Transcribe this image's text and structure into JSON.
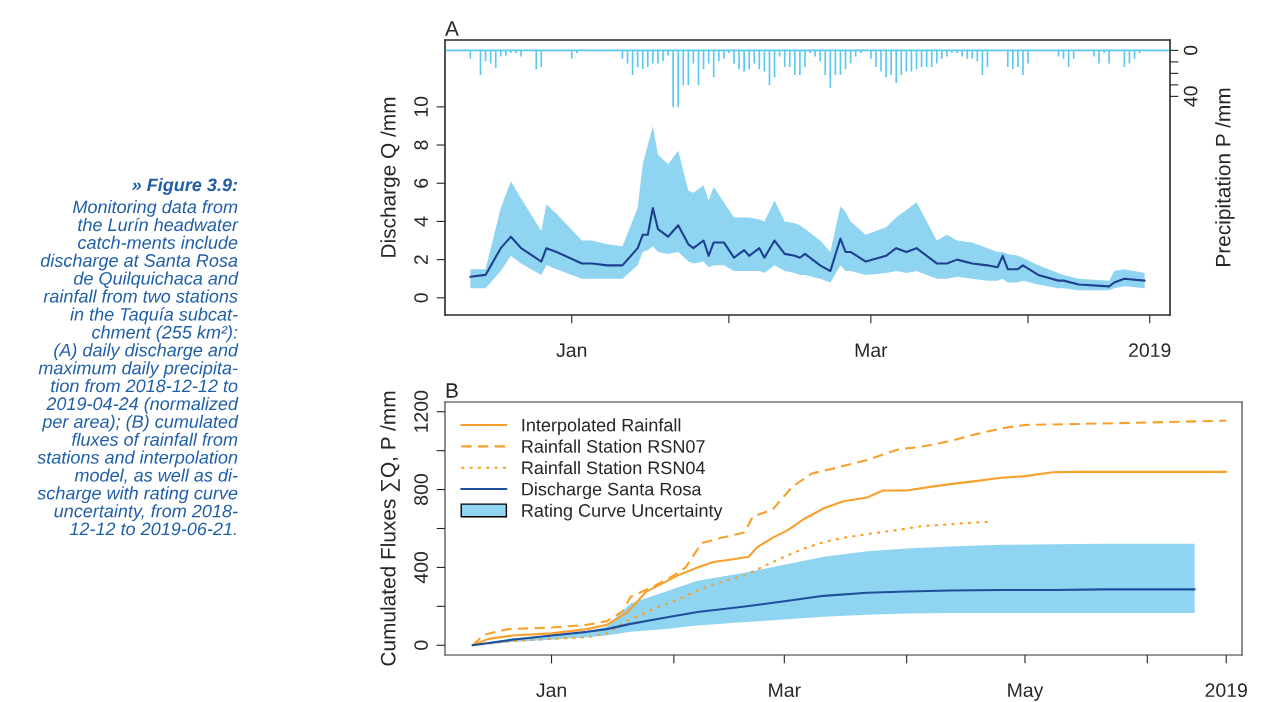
{
  "chart_data": [
    {
      "type": "line",
      "title": "A",
      "ylabel": "Discharge Q /mm",
      "y2label": "Precipitation P /mm",
      "xlim": [
        "2018-12-07",
        "2019-04-29"
      ],
      "xticks": [
        {
          "value": "2019-01-01",
          "label": "Jan"
        },
        {
          "value": "2019-02-01",
          "label": null
        },
        {
          "value": "2019-03-01",
          "label": "Mar"
        },
        {
          "value": "2019-04-01",
          "label": null
        },
        {
          "value": "2019-04-25",
          "label": "2019"
        }
      ],
      "ylim": [
        -0.9,
        13.5
      ],
      "yticks": [
        0,
        2,
        4,
        6,
        8,
        10
      ],
      "y2lim": [
        230,
        -9
      ],
      "y2ticks": [
        0,
        {
          "value": 10,
          "label": null
        },
        {
          "value": 20,
          "label": null
        },
        {
          "value": 30,
          "label": null
        },
        40
      ],
      "ref_lines": [
        {
          "axis": "y2",
          "value": 0,
          "color": "#5bc8f0"
        }
      ],
      "annotations": [
        "» Figure 3.9:",
        "Monitoring data from\nthe Lurín headwater\ncatch-ments include\ndischarge at Santa Rosa\nde Quilquichaca and\nrainfall from two stations\nin the Taquía subcat-\nchment (255 km²):\n(A) daily discharge and\nmaximum daily precipita-\ntion from 2018-12-12 to\n2019-04-24 (normalized\nper area); (B) cumulated\nfluxes of rainfall from\nstations and interpolation\nmodel, as well as di-\nscharge with rating curve\nuncertainty, from 2018-\n12-12 to 2019-06-21."
      ],
      "series": [
        {
          "type": "bar",
          "axis": "y2",
          "color": "#5bc8f0",
          "x": [
            "2018-12-12",
            "2018-12-14",
            "2018-12-15",
            "2018-12-16",
            "2018-12-17",
            "2018-12-18",
            "2018-12-19",
            "2018-12-20",
            "2018-12-21",
            "2018-12-22",
            "2018-12-25",
            "2018-12-26",
            "2019-01-01",
            "2019-01-02",
            "2019-01-03",
            "2019-01-11",
            "2019-01-12",
            "2019-01-13",
            "2019-01-14",
            "2019-01-15",
            "2019-01-16",
            "2019-01-17",
            "2019-01-18",
            "2019-01-19",
            "2019-01-20",
            "2019-01-21",
            "2019-01-22",
            "2019-01-23",
            "2019-01-24",
            "2019-01-25",
            "2019-01-26",
            "2019-01-27",
            "2019-01-28",
            "2019-01-29",
            "2019-01-30",
            "2019-01-31",
            "2019-02-01",
            "2019-02-02",
            "2019-02-03",
            "2019-02-04",
            "2019-02-05",
            "2019-02-06",
            "2019-02-07",
            "2019-02-08",
            "2019-02-09",
            "2019-02-10",
            "2019-02-11",
            "2019-02-12",
            "2019-02-13",
            "2019-02-14",
            "2019-02-15",
            "2019-02-16",
            "2019-02-17",
            "2019-02-18",
            "2019-02-19",
            "2019-02-20",
            "2019-02-21",
            "2019-02-22",
            "2019-02-23",
            "2019-02-24",
            "2019-02-25",
            "2019-02-26",
            "2019-02-27",
            "2019-03-01",
            "2019-03-02",
            "2019-03-03",
            "2019-03-04",
            "2019-03-05",
            "2019-03-06",
            "2019-03-07",
            "2019-03-08",
            "2019-03-09",
            "2019-03-10",
            "2019-03-11",
            "2019-03-12",
            "2019-03-13",
            "2019-03-14",
            "2019-03-15",
            "2019-03-16",
            "2019-03-17",
            "2019-03-18",
            "2019-03-19",
            "2019-03-20",
            "2019-03-21",
            "2019-03-22",
            "2019-03-23",
            "2019-03-24",
            "2019-03-28",
            "2019-03-29",
            "2019-03-30",
            "2019-03-31",
            "2019-04-01",
            "2019-04-07",
            "2019-04-08",
            "2019-04-09",
            "2019-04-10",
            "2019-04-14",
            "2019-04-15",
            "2019-04-16",
            "2019-04-17",
            "2019-04-20",
            "2019-04-21",
            "2019-04-22",
            "2019-04-23"
          ],
          "values": [
            8,
            22,
            10,
            12,
            16,
            6,
            5,
            3,
            3,
            6,
            17,
            15,
            8,
            3,
            1,
            8,
            12,
            22,
            15,
            17,
            15,
            12,
            12,
            10,
            5,
            50,
            50,
            31,
            31,
            12,
            31,
            17,
            12,
            24,
            10,
            8,
            3,
            12,
            17,
            19,
            17,
            12,
            17,
            19,
            31,
            24,
            6,
            15,
            15,
            22,
            22,
            15,
            3,
            6,
            10,
            22,
            33,
            22,
            22,
            17,
            12,
            6,
            3,
            8,
            15,
            19,
            24,
            22,
            29,
            22,
            19,
            19,
            17,
            15,
            15,
            15,
            12,
            8,
            6,
            3,
            3,
            6,
            8,
            8,
            10,
            22,
            15,
            15,
            17,
            15,
            22,
            12,
            6,
            8,
            15,
            8,
            6,
            12,
            3,
            12,
            15,
            12,
            8,
            3
          ]
        },
        {
          "type": "area",
          "color": "#8fd5f2"
        },
        {
          "color": "#1f3f8f",
          "x": [
            "2018-12-12",
            "2018-12-15",
            "2018-12-18",
            "2018-12-20",
            "2018-12-22",
            "2018-12-26",
            "2018-12-27",
            "2018-12-29",
            "2019-01-03",
            "2019-01-05",
            "2019-01-08",
            "2019-01-11",
            "2019-01-14",
            "2019-01-15",
            "2019-01-16",
            "2019-01-17",
            "2019-01-18",
            "2019-01-20",
            "2019-01-22",
            "2019-01-24",
            "2019-01-25",
            "2019-01-27",
            "2019-01-28",
            "2019-01-29",
            "2019-01-31",
            "2019-02-02",
            "2019-02-04",
            "2019-02-05",
            "2019-02-07",
            "2019-02-08",
            "2019-02-10",
            "2019-02-12",
            "2019-02-14",
            "2019-02-15",
            "2019-02-16",
            "2019-02-19",
            "2019-02-21",
            "2019-02-23",
            "2019-02-24",
            "2019-02-25",
            "2019-02-28",
            "2019-03-04",
            "2019-03-06",
            "2019-03-08",
            "2019-03-10",
            "2019-03-14",
            "2019-03-16",
            "2019-03-18",
            "2019-03-21",
            "2019-03-24",
            "2019-03-26",
            "2019-03-27",
            "2019-03-28",
            "2019-03-30",
            "2019-03-31",
            "2019-04-03",
            "2019-04-07",
            "2019-04-08",
            "2019-04-11",
            "2019-04-17",
            "2019-04-18",
            "2019-04-20",
            "2019-04-24"
          ],
          "values": [
            1.1,
            1.2,
            2.6,
            3.2,
            2.6,
            1.9,
            2.6,
            2.4,
            1.8,
            1.8,
            1.7,
            1.7,
            2.6,
            3.3,
            3.3,
            4.7,
            3.6,
            3.2,
            3.8,
            2.8,
            2.6,
            3.0,
            2.2,
            2.9,
            2.9,
            2.1,
            2.5,
            2.2,
            2.6,
            2.1,
            3.0,
            2.3,
            2.2,
            2.1,
            2.3,
            1.7,
            1.4,
            3.1,
            2.4,
            2.4,
            1.9,
            2.2,
            2.6,
            2.4,
            2.6,
            1.8,
            1.8,
            2.0,
            1.8,
            1.7,
            1.6,
            2.2,
            1.5,
            1.5,
            1.7,
            1.2,
            0.9,
            0.9,
            0.7,
            0.6,
            0.8,
            1.0,
            0.9
          ],
          "upper": [
            1.5,
            1.5,
            4.7,
            6.1,
            5.2,
            3.5,
            4.9,
            4.4,
            3.0,
            3.0,
            2.8,
            2.7,
            4.7,
            7.0,
            8.0,
            9.0,
            7.5,
            7.0,
            7.7,
            5.6,
            5.5,
            5.9,
            5.1,
            5.8,
            5.0,
            4.2,
            4.2,
            4.2,
            4.1,
            4.0,
            5.1,
            4.0,
            3.9,
            3.8,
            3.6,
            3.0,
            2.4,
            4.8,
            4.5,
            4.0,
            3.3,
            3.7,
            4.2,
            4.6,
            5.0,
            3.0,
            3.3,
            3.0,
            2.9,
            2.6,
            2.4,
            2.4,
            2.3,
            2.2,
            2.1,
            1.7,
            1.3,
            1.2,
            1.0,
            0.9,
            1.4,
            1.5,
            1.3
          ],
          "lower": [
            0.5,
            0.5,
            1.4,
            2.2,
            1.8,
            1.2,
            1.7,
            1.5,
            1.0,
            1.0,
            1.0,
            1.0,
            1.7,
            2.4,
            2.5,
            2.7,
            2.4,
            2.3,
            2.4,
            1.9,
            1.8,
            1.9,
            1.6,
            1.7,
            1.7,
            1.4,
            1.4,
            1.4,
            1.4,
            1.3,
            1.7,
            1.4,
            1.3,
            1.2,
            1.2,
            1.0,
            0.8,
            1.7,
            1.4,
            1.4,
            1.2,
            1.3,
            1.4,
            1.3,
            1.4,
            1.0,
            1.0,
            1.1,
            1.0,
            0.9,
            0.9,
            1.0,
            0.8,
            0.8,
            0.9,
            0.7,
            0.5,
            0.5,
            0.4,
            0.4,
            0.5,
            0.6,
            0.5
          ]
        }
      ]
    },
    {
      "type": "line",
      "title": "B",
      "ylabel": "Cumulated Fluxes ∑Q, P /mm",
      "legend": "top left",
      "xlim": [
        "2018-12-05",
        "2019-06-25"
      ],
      "xticks": [
        {
          "value": "2019-01-01",
          "label": "Jan"
        },
        {
          "value": "2019-02-01",
          "label": null
        },
        {
          "value": "2019-03-01",
          "label": "Mar"
        },
        {
          "value": "2019-04-01",
          "label": null
        },
        {
          "value": "2019-05-01",
          "label": "May"
        },
        {
          "value": "2019-06-01",
          "label": null
        },
        {
          "value": "2019-06-21",
          "label": "2019"
        }
      ],
      "ylim": [
        -50,
        1250
      ],
      "yticks": [
        0,
        {
          "value": 200,
          "label": null
        },
        400,
        {
          "value": 600,
          "label": null
        },
        800,
        {
          "value": 1000,
          "label": null
        },
        1200
      ],
      "series": [
        {
          "name": "Interpolated Rainfall",
          "line_style": "solid",
          "color": "#f7a12c",
          "x": [
            "2018-12-12",
            "2018-12-16",
            "2018-12-22",
            "2019-01-01",
            "2019-01-10",
            "2019-01-15",
            "2019-01-20",
            "2019-01-22",
            "2019-01-25",
            "2019-01-29",
            "2019-02-02",
            "2019-02-07",
            "2019-02-11",
            "2019-02-16",
            "2019-02-20",
            "2019-02-22",
            "2019-02-26",
            "2019-03-02",
            "2019-03-06",
            "2019-03-11",
            "2019-03-16",
            "2019-03-22",
            "2019-03-26",
            "2019-04-01",
            "2019-04-07",
            "2019-04-12",
            "2019-04-18",
            "2019-04-25",
            "2019-05-01",
            "2019-05-08",
            "2019-05-14",
            "2019-05-21",
            "2019-06-02",
            "2019-06-21"
          ],
          "values": [
            0,
            33,
            50,
            61,
            83,
            105,
            166,
            207,
            276,
            317,
            359,
            400,
            428,
            442,
            455,
            502,
            552,
            593,
            649,
            704,
            740,
            759,
            795,
            795,
            814,
            828,
            842,
            861,
            869,
            889,
            891,
            891,
            891,
            891
          ]
        },
        {
          "name": "Rainfall Station RSN07",
          "line_style": "dashed",
          "color": "#f7a12c",
          "x": [
            "2018-12-12",
            "2018-12-15",
            "2018-12-21",
            "2019-01-01",
            "2019-01-10",
            "2019-01-15",
            "2019-01-19",
            "2019-01-21",
            "2019-01-27",
            "2019-02-01",
            "2019-02-04",
            "2019-02-08",
            "2019-02-13",
            "2019-02-19",
            "2019-02-21",
            "2019-02-26",
            "2019-03-03",
            "2019-03-08",
            "2019-03-14",
            "2019-03-22",
            "2019-03-30",
            "2019-04-05",
            "2019-04-12",
            "2019-04-18",
            "2019-04-26",
            "2019-05-01",
            "2019-05-14",
            "2019-06-02",
            "2019-06-21"
          ],
          "values": [
            0,
            55,
            83,
            91,
            105,
            124,
            174,
            248,
            304,
            359,
            400,
            524,
            552,
            580,
            662,
            696,
            814,
            883,
            911,
            952,
            1007,
            1021,
            1049,
            1082,
            1118,
            1132,
            1137,
            1145,
            1154
          ]
        },
        {
          "name": "Rainfall Station RSN04",
          "line_style": "dotted",
          "color": "#f7a12c",
          "x": [
            "2018-12-12",
            "2018-12-22",
            "2019-01-01",
            "2019-01-10",
            "2019-01-15",
            "2019-01-20",
            "2019-01-27",
            "2019-02-02",
            "2019-02-08",
            "2019-02-13",
            "2019-02-19",
            "2019-02-24",
            "2019-03-01",
            "2019-03-06",
            "2019-03-11",
            "2019-03-16",
            "2019-03-23",
            "2019-03-30",
            "2019-04-05",
            "2019-04-12",
            "2019-04-17",
            "2019-04-22"
          ],
          "values": [
            0,
            22,
            33,
            41,
            61,
            124,
            188,
            235,
            290,
            326,
            359,
            408,
            455,
            497,
            530,
            552,
            574,
            593,
            613,
            621,
            629,
            635
          ]
        },
        {
          "name": "Discharge Santa Rosa",
          "line_style": "solid",
          "color": "#1f4e9c",
          "x": [
            "2018-12-12",
            "2018-12-22",
            "2019-01-01",
            "2019-01-10",
            "2019-01-15",
            "2019-01-21",
            "2019-01-30",
            "2019-02-07",
            "2019-02-19",
            "2019-03-01",
            "2019-03-11",
            "2019-03-22",
            "2019-04-01",
            "2019-04-12",
            "2019-04-25",
            "2019-05-08",
            "2019-05-21",
            "2019-06-13"
          ],
          "values": [
            0,
            28,
            50,
            69,
            83,
            110,
            143,
            171,
            199,
            226,
            254,
            270,
            276,
            281,
            284,
            284,
            287,
            287
          ],
          "upper": [
            0,
            36,
            50,
            69,
            97,
            215,
            276,
            331,
            373,
            414,
            455,
            483,
            497,
            508,
            516,
            519,
            522,
            522
          ],
          "lower": [
            0,
            17,
            28,
            41,
            50,
            69,
            83,
            102,
            119,
            132,
            146,
            157,
            163,
            166,
            166,
            166,
            166,
            166
          ]
        },
        {
          "name": "Rating Curve Uncertainty",
          "type": "area",
          "color": "#8fd5f2"
        }
      ]
    }
  ]
}
